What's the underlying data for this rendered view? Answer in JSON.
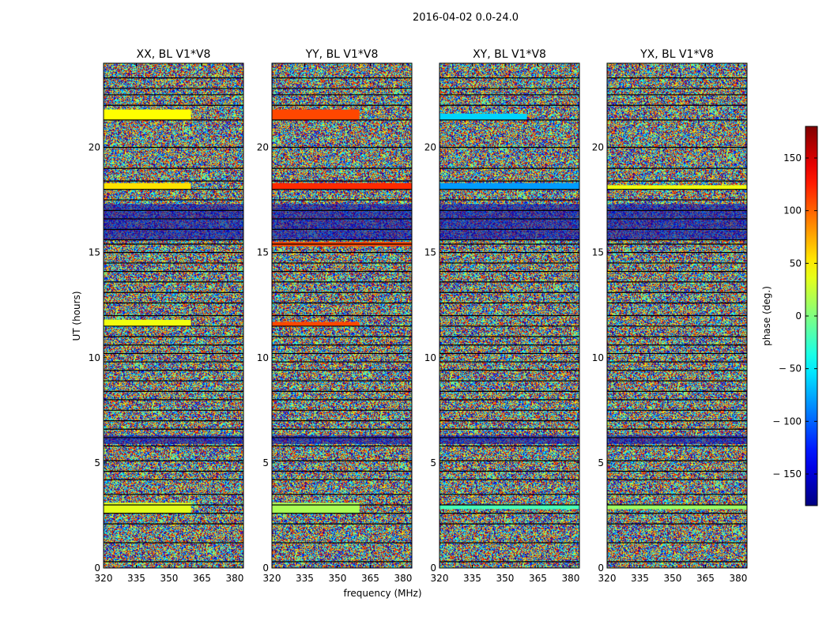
{
  "chart_data": {
    "type": "heatmap",
    "suptitle": "2016-04-02 0.0-24.0",
    "xlabel": "frequency (MHz)",
    "ylabel": "UT (hours)",
    "xlim": [
      320,
      384
    ],
    "ylim": [
      0,
      24
    ],
    "xticks": [
      320,
      335,
      350,
      365,
      380
    ],
    "yticks": [
      0,
      5,
      10,
      15,
      20
    ],
    "panels": [
      {
        "title": "XX, BL V1*V8",
        "pol": "XX",
        "bands": [
          {
            "t0": 2.6,
            "t1": 3.1,
            "phase": 35,
            "f1": 360
          },
          {
            "t0": 11.5,
            "t1": 11.8,
            "phase": 40,
            "f1": 360
          },
          {
            "t0": 18.0,
            "t1": 18.3,
            "phase": 55,
            "f1": 360
          },
          {
            "t0": 21.3,
            "t1": 21.8,
            "phase": 45,
            "f1": 360
          }
        ]
      },
      {
        "title": "YY, BL V1*V8",
        "pol": "YY",
        "bands": [
          {
            "t0": 2.6,
            "t1": 3.1,
            "phase": 15,
            "f1": 360
          },
          {
            "t0": 11.5,
            "t1": 11.7,
            "phase": 110,
            "f1": 360
          },
          {
            "t0": 15.3,
            "t1": 15.5,
            "phase": 110,
            "f1": 384
          },
          {
            "t0": 18.0,
            "t1": 18.3,
            "phase": 120,
            "f1": 384
          },
          {
            "t0": 21.3,
            "t1": 21.8,
            "phase": 110,
            "f1": 360
          }
        ]
      },
      {
        "title": "XY, BL V1*V8",
        "pol": "XY",
        "bands": [
          {
            "t0": 2.8,
            "t1": 3.0,
            "phase": -20,
            "f1": 384
          },
          {
            "t0": 18.0,
            "t1": 18.3,
            "phase": -80,
            "f1": 384
          },
          {
            "t0": 21.3,
            "t1": 21.6,
            "phase": -60,
            "f1": 360
          }
        ]
      },
      {
        "title": "YX, BL V1*V8",
        "pol": "YX",
        "bands": [
          {
            "t0": 2.8,
            "t1": 3.0,
            "phase": 10,
            "f1": 384
          },
          {
            "t0": 18.0,
            "t1": 18.2,
            "phase": 40,
            "f1": 384
          }
        ]
      }
    ],
    "gap_lines_ut": [
      0.3,
      1.2,
      2.1,
      2.6,
      3.0,
      3.5,
      4.2,
      4.6,
      5.1,
      5.8,
      6.2,
      6.6,
      7.0,
      7.5,
      8.0,
      8.4,
      8.9,
      9.4,
      9.8,
      10.2,
      10.6,
      11.0,
      11.5,
      12.0,
      12.6,
      13.1,
      13.6,
      14.1,
      14.5,
      15.0,
      15.4,
      15.6,
      16.1,
      16.6,
      17.0,
      17.5,
      18.0,
      18.4,
      19.0,
      20.0,
      21.3,
      22.0,
      22.5,
      22.8,
      23.3
    ],
    "dark_bands_ut": [
      [
        5.9,
        6.3
      ],
      [
        15.6,
        17.3
      ]
    ],
    "colorbar": {
      "label": "phase (deg.)",
      "range": [
        -180,
        180
      ],
      "ticks": [
        150,
        100,
        50,
        0,
        -50,
        -100,
        -150
      ],
      "tick_labels": [
        "150",
        "100",
        "50",
        "0",
        "− 50",
        "− 100",
        "− 150"
      ],
      "colormap": "jet"
    }
  }
}
